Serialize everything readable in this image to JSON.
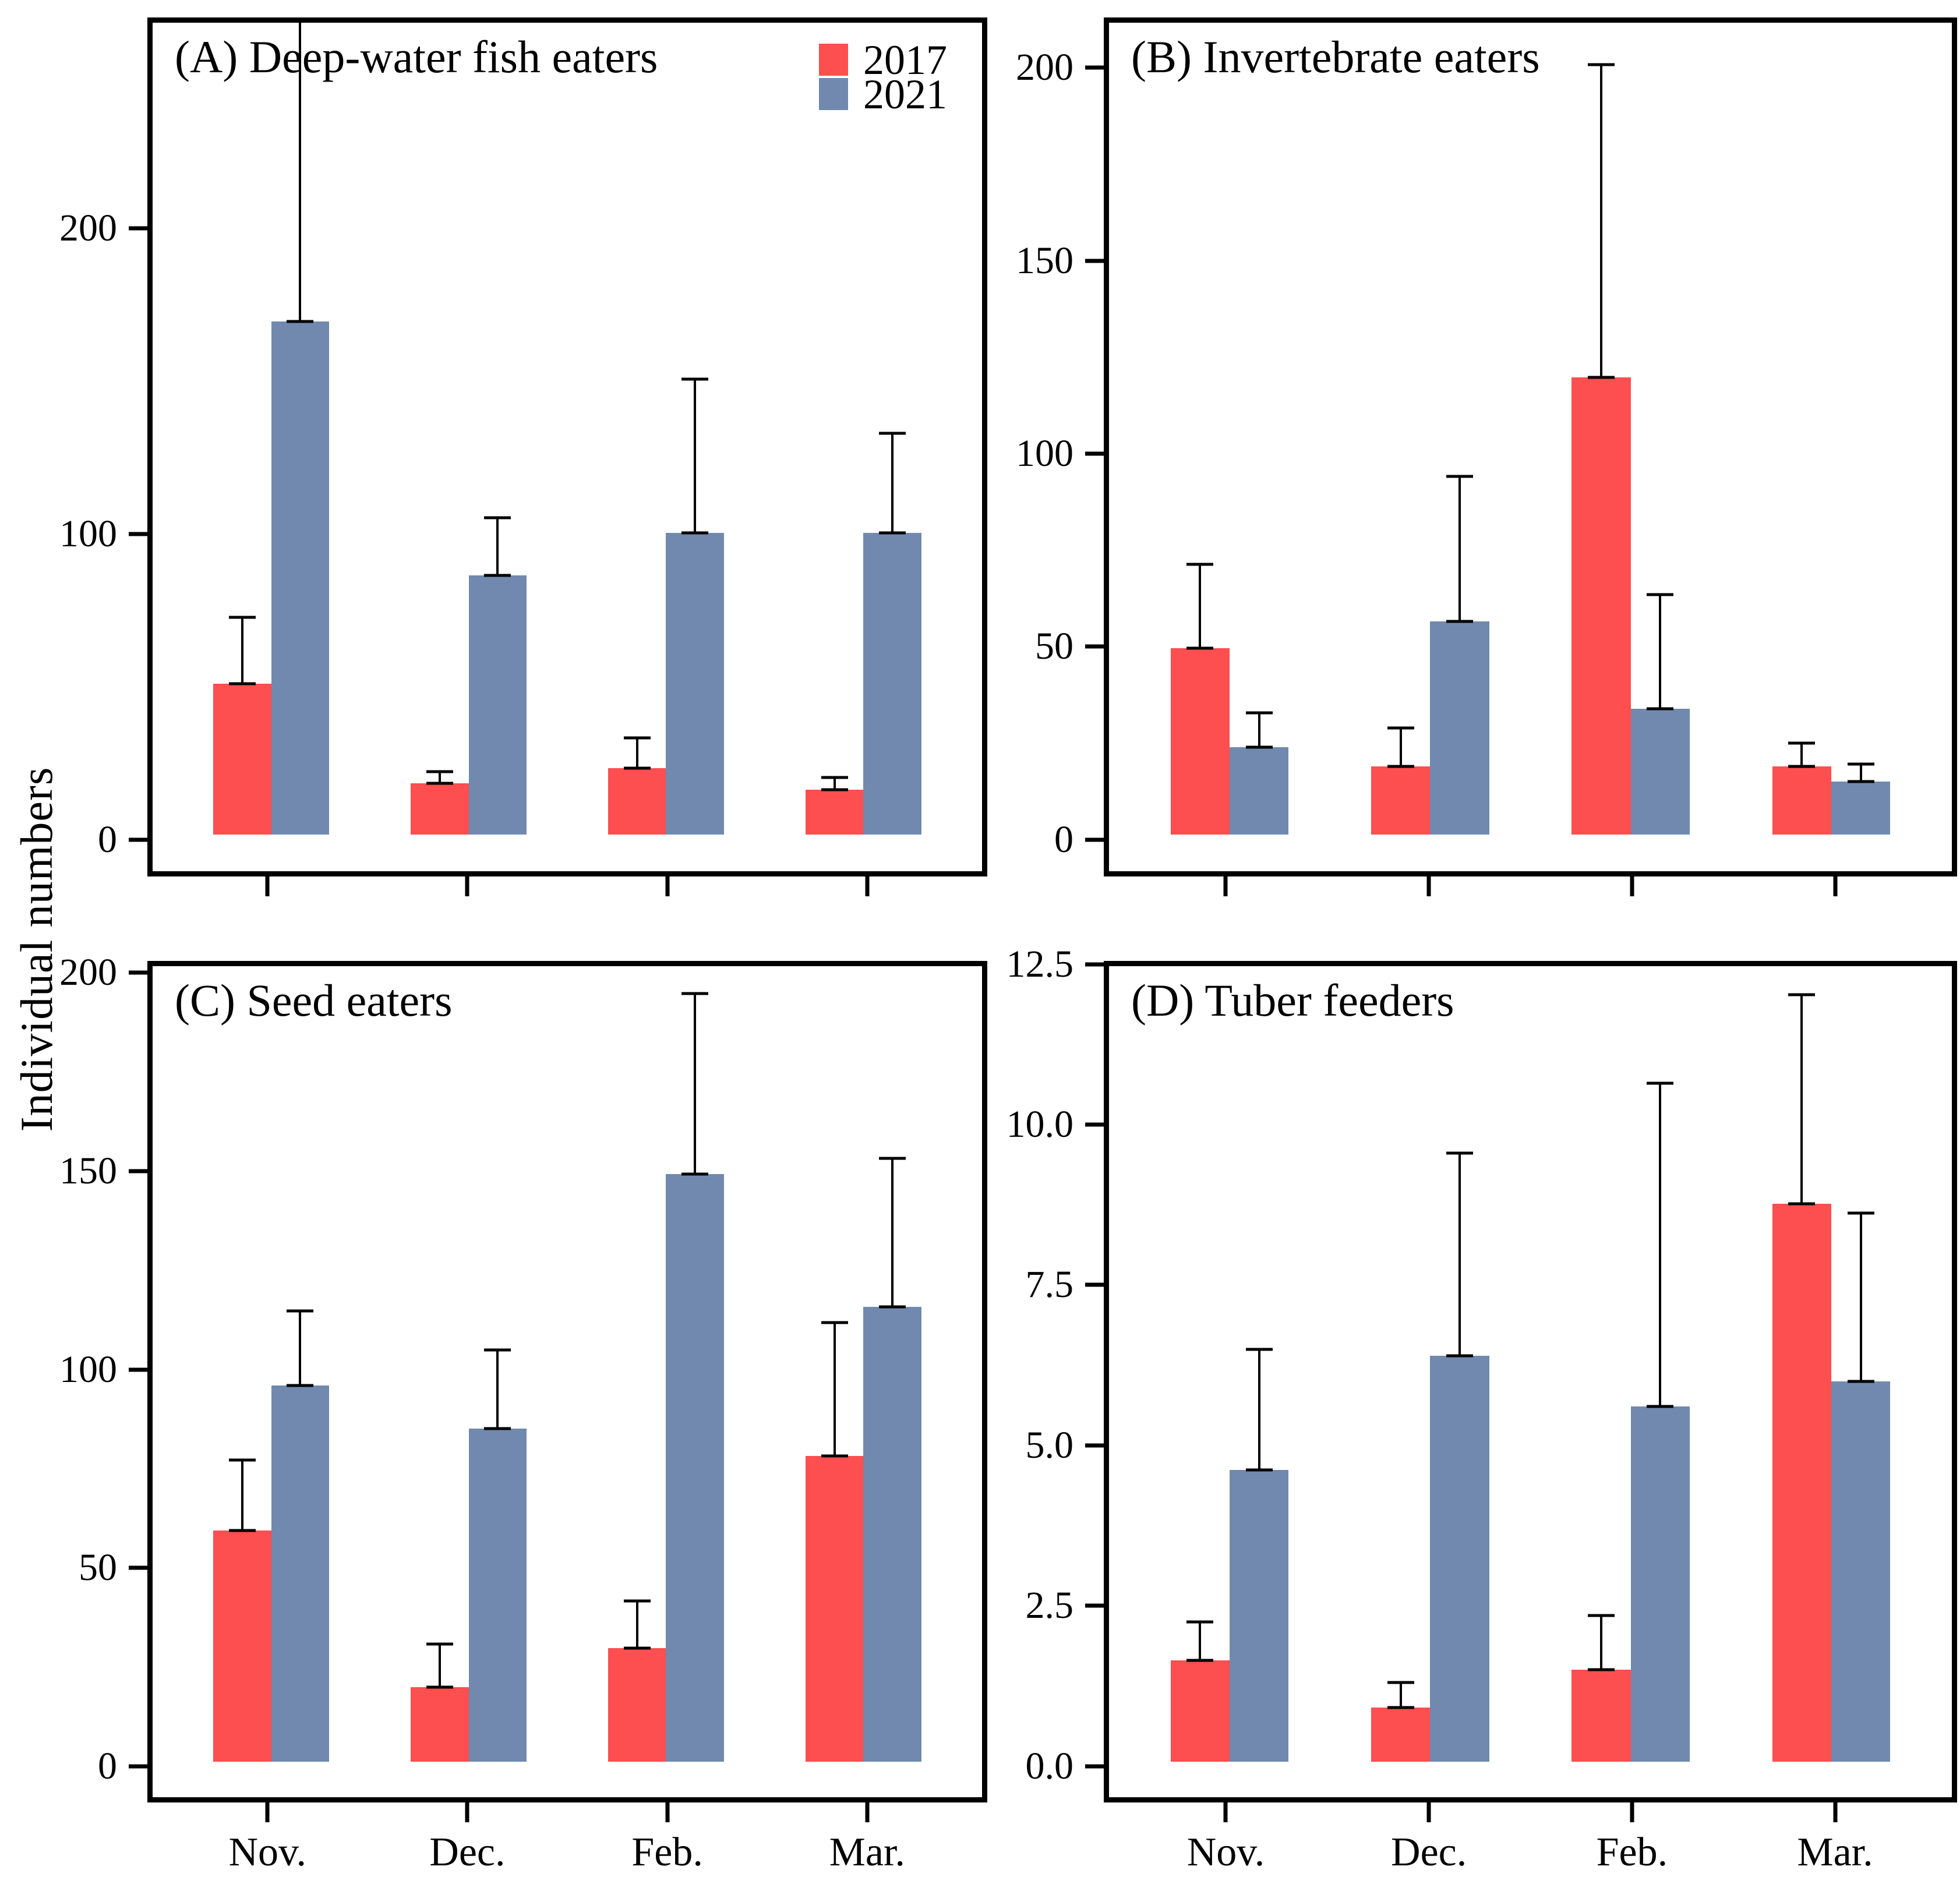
{
  "figure": {
    "y_axis_label": "Individual numbers",
    "legend": {
      "items": [
        {
          "label": "2017",
          "color": "#FD4E50"
        },
        {
          "label": "2021",
          "color": "#7189AE"
        }
      ]
    }
  },
  "chart_data": [
    {
      "type": "bar",
      "panel": "A",
      "title": "(A) Deep-water fish eaters",
      "categories": [
        "Nov.",
        "Dec.",
        "Feb.",
        "Mar."
      ],
      "series": [
        {
          "name": "2017",
          "color": "#FD4E50",
          "values": [
            50,
            17,
            22,
            15
          ],
          "errors": [
            22,
            4,
            10,
            4
          ]
        },
        {
          "name": "2021",
          "color": "#7189AE",
          "values": [
            170,
            86,
            100,
            100
          ],
          "errors": [
            100,
            19,
            51,
            33
          ]
        }
      ],
      "ylabel": "Individual numbers",
      "yticks": [
        0,
        100,
        200
      ],
      "ytick_labels": [
        "0",
        "100",
        "200"
      ],
      "ymax": 269,
      "show_x_labels": false,
      "legend_position": "top-right-inside",
      "grid": false,
      "note": "2021 Nov upper error bar clipped at panel top"
    },
    {
      "type": "bar",
      "panel": "B",
      "title": "(B) Invertebrate eaters",
      "categories": [
        "Nov.",
        "Dec.",
        "Feb.",
        "Mar."
      ],
      "series": [
        {
          "name": "2017",
          "color": "#FD4E50",
          "values": [
            49,
            18,
            120,
            18
          ],
          "errors": [
            22,
            10,
            82,
            6
          ]
        },
        {
          "name": "2021",
          "color": "#7189AE",
          "values": [
            23,
            56,
            33,
            14
          ],
          "errors": [
            9,
            38,
            30,
            4.5
          ]
        }
      ],
      "ylabel": "Individual numbers",
      "yticks": [
        0,
        50,
        100,
        150,
        200
      ],
      "ytick_labels": [
        "0",
        "50",
        "100",
        "150",
        "200"
      ],
      "ymax": 213,
      "show_x_labels": false,
      "grid": false
    },
    {
      "type": "bar",
      "panel": "C",
      "title": "(C) Seed eaters",
      "categories": [
        "Nov.",
        "Dec.",
        "Feb.",
        "Mar."
      ],
      "series": [
        {
          "name": "2017",
          "color": "#FD4E50",
          "values": [
            59,
            19,
            29,
            78
          ],
          "errors": [
            18,
            11,
            12,
            34
          ]
        },
        {
          "name": "2021",
          "color": "#7189AE",
          "values": [
            96,
            85,
            150,
            116
          ],
          "errors": [
            19,
            20,
            46,
            38
          ]
        }
      ],
      "ylabel": "Individual numbers",
      "yticks": [
        0,
        50,
        100,
        150,
        200
      ],
      "ytick_labels": [
        "0",
        "50",
        "100",
        "150",
        "200"
      ],
      "ymax": 203,
      "show_x_labels": true,
      "grid": false
    },
    {
      "type": "bar",
      "panel": "D",
      "title": "(D) Tuber feeders",
      "categories": [
        "Nov.",
        "Dec.",
        "Feb.",
        "Mar."
      ],
      "series": [
        {
          "name": "2017",
          "color": "#FD4E50",
          "values": [
            1.6,
            0.85,
            1.45,
            8.8
          ],
          "errors": [
            0.6,
            0.4,
            0.85,
            3.3
          ]
        },
        {
          "name": "2021",
          "color": "#7189AE",
          "values": [
            4.6,
            6.4,
            5.6,
            6.0
          ],
          "errors": [
            1.9,
            3.2,
            5.1,
            2.65
          ]
        }
      ],
      "ylabel": "Individual numbers",
      "yticks": [
        0,
        2.5,
        5,
        7.5,
        10,
        12.5
      ],
      "ytick_labels": [
        "0.0",
        "2.5",
        "5.0",
        "7.5",
        "10.0",
        "12.5"
      ],
      "ymax": 12.55,
      "show_x_labels": true,
      "grid": false
    }
  ]
}
